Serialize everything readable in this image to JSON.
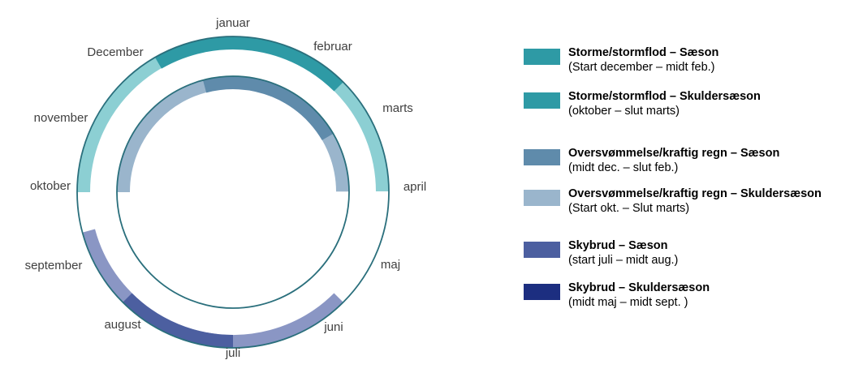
{
  "chart_data": {
    "type": "radial-calendar",
    "months": [
      "januar",
      "februar",
      "marts",
      "april",
      "maj",
      "juni",
      "juli",
      "august",
      "september",
      "oktober",
      "november",
      "December"
    ],
    "series": [
      {
        "name": "Storme/stormflod – Sæson",
        "period": "Start december – midt feb.",
        "ring": "outer",
        "color": "#2e9aa5",
        "start_month": 12.0,
        "end_month": 2.5
      },
      {
        "name": "Storme/stormflod – Skuldersæson",
        "period": "oktober – slut marts",
        "ring": "outer",
        "color": "#2e9aa5",
        "start_month": 10.0,
        "end_month": 3.99,
        "shown_color": "#8ccfd3"
      },
      {
        "name": "Oversvømmelse/kraftig regn – Sæson",
        "period": "midt dec. – slut feb.",
        "ring": "inner",
        "color": "#5f8bab",
        "start_month": 12.5,
        "end_month": 2.99
      },
      {
        "name": "Oversvømmelse/kraftig regn – Skuldersæson",
        "period": "Start okt. – Slut marts",
        "ring": "inner",
        "color": "#9ab5cc",
        "start_month": 10.0,
        "end_month": 3.99
      },
      {
        "name": "Skybrud – Sæson",
        "period": "start juli – midt aug.",
        "ring": "outer",
        "color": "#4c5fa0",
        "start_month": 7.0,
        "end_month": 8.5
      },
      {
        "name": "Skybrud – Skuldersæson",
        "period": "midt maj – midt sept. )",
        "ring": "outer",
        "color": "#1c2e80",
        "start_month": 5.5,
        "end_month": 9.5,
        "shown_color": "#8a96c4"
      }
    ]
  },
  "legend": {
    "items": [
      {
        "title": "Storme/stormflod – Sæson",
        "sub": "(Start december – midt feb.)",
        "color": "#2e9aa5"
      },
      {
        "title": "Storme/stormflod – Skuldersæson",
        "sub": "(oktober – slut marts)",
        "color": "#2e9aa5"
      },
      {
        "title": "Oversvømmelse/kraftig regn – Sæson",
        "sub": "(midt dec. – slut feb.)",
        "color": "#5f8bab"
      },
      {
        "title": "Oversvømmelse/kraftig regn – Skuldersæson",
        "sub": "(Start okt. – Slut marts)",
        "color": "#9ab5cc"
      },
      {
        "title": "Skybrud – Sæson",
        "sub": "(start juli – midt aug.)",
        "color": "#4c5fa0"
      },
      {
        "title": "Skybrud – Skuldersæson",
        "sub": "(midt maj – midt sept. )",
        "color": "#1c2e80"
      }
    ]
  },
  "colors": {
    "ring_line": "#2a6f7c",
    "storm_shoulder_arc": "#8ccfd3",
    "storm_season_arc": "#2e9aa5",
    "flood_shoulder_arc": "#9ab5cc",
    "flood_season_arc": "#5f8bab",
    "cloudburst_shoulder_arc": "#8a96c4",
    "cloudburst_season_arc": "#4c5fa0"
  }
}
